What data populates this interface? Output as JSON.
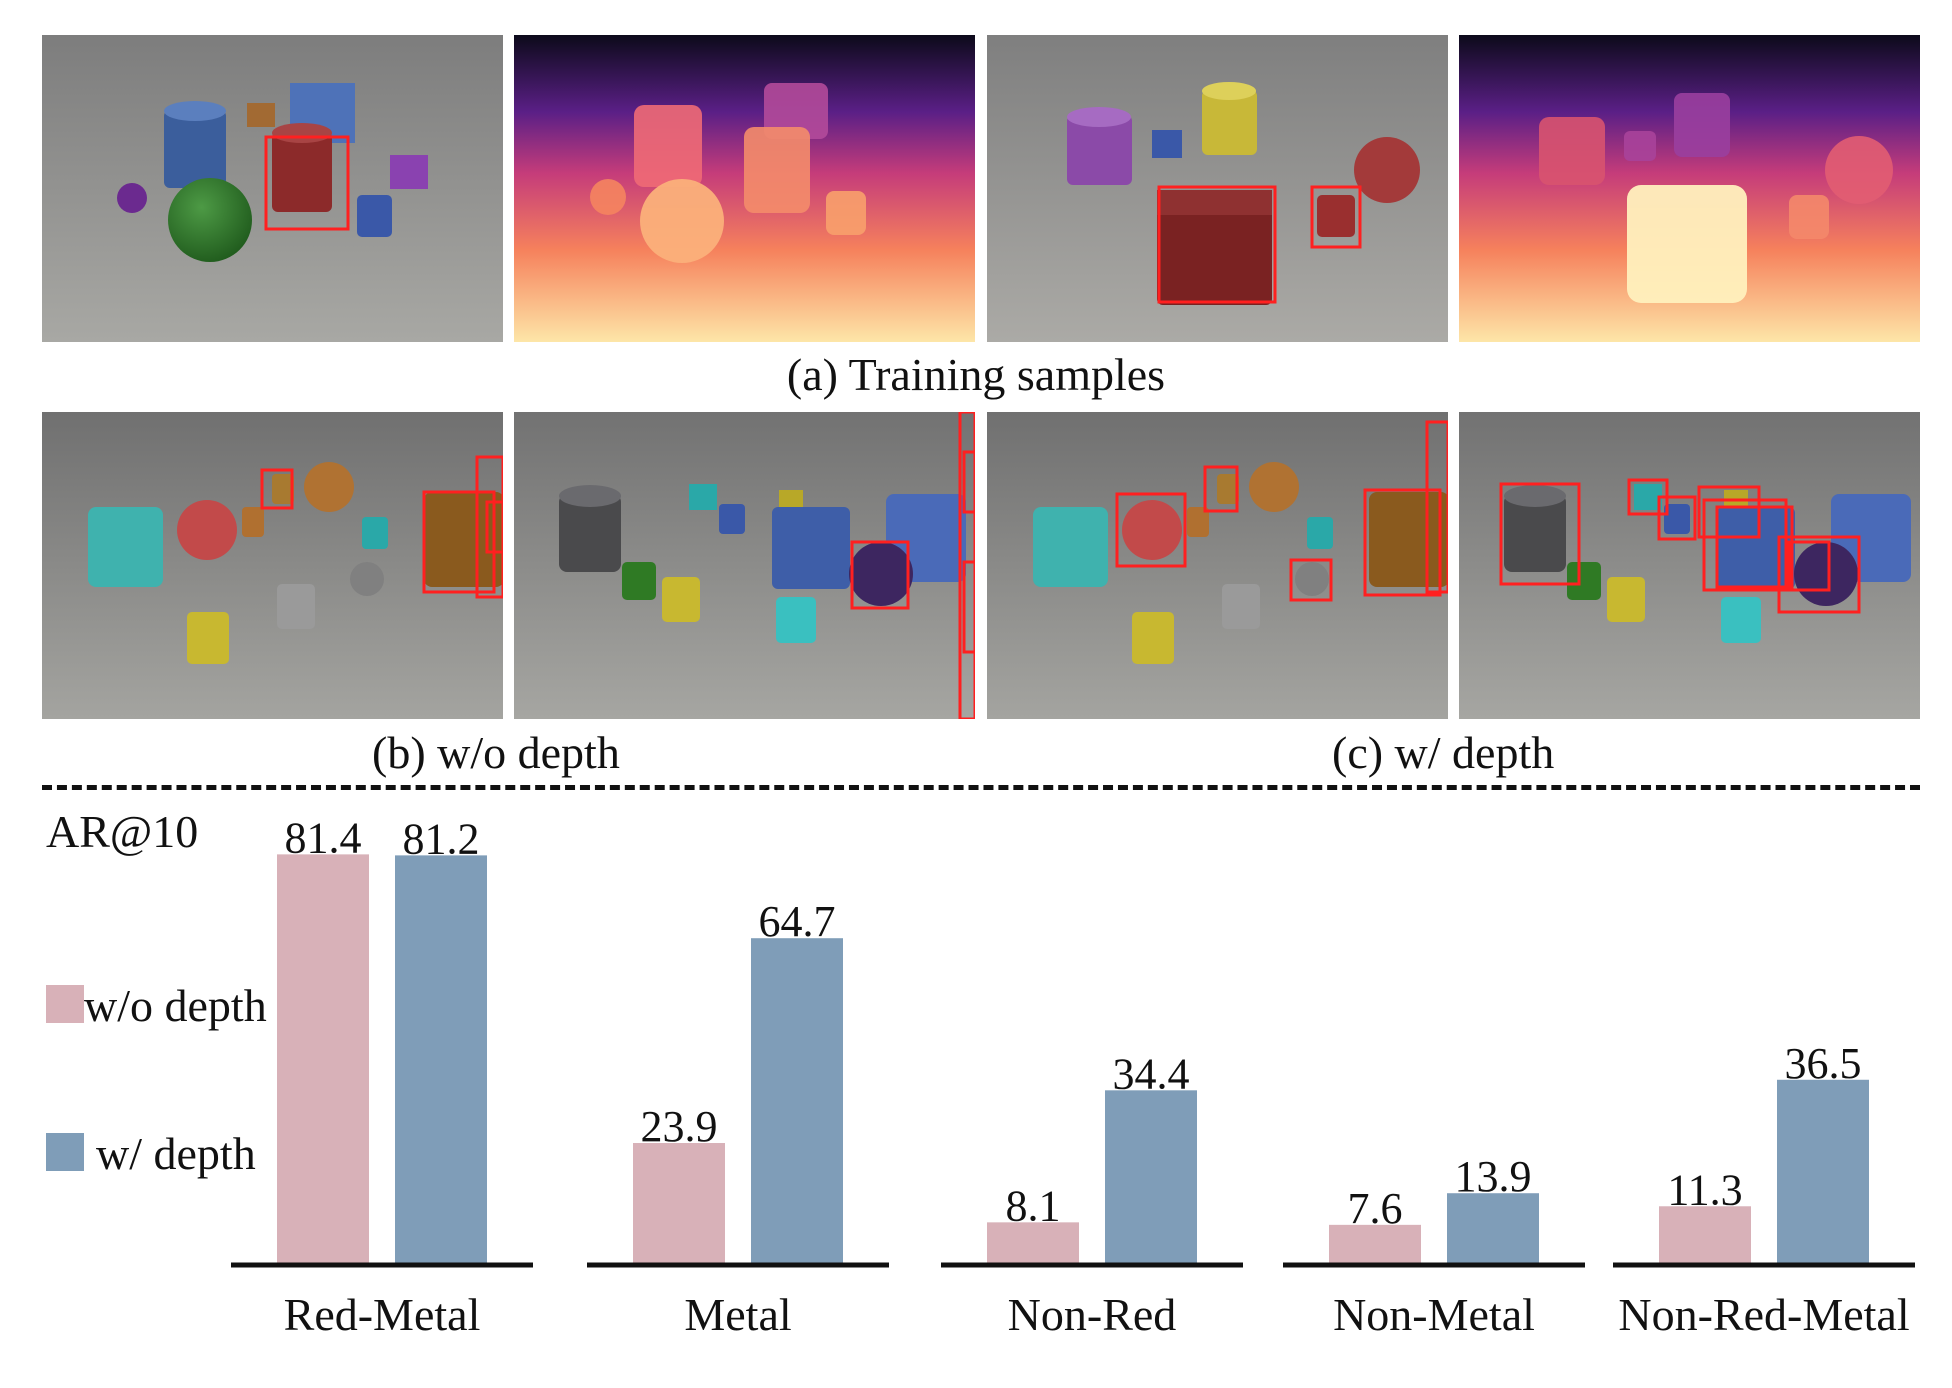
{
  "captions": {
    "training": "(a) Training samples",
    "without_depth": "(b) w/o depth",
    "with_depth": "(c) w/ depth"
  },
  "colors": {
    "without_depth": "#d8b1b8",
    "with_depth": "#7f9db8",
    "detection_box": "#ff2020",
    "axis": "#111111"
  },
  "chart_data": {
    "type": "bar",
    "ylabel": "AR@10",
    "categories": [
      "Red-Metal",
      "Metal",
      "Non-Red",
      "Non-Metal",
      "Non-Red-Metal"
    ],
    "series": [
      {
        "name": "w/o depth",
        "values": [
          81.4,
          23.9,
          8.1,
          7.6,
          11.3
        ]
      },
      {
        "name": "w/ depth",
        "values": [
          81.2,
          64.7,
          34.4,
          13.9,
          36.5
        ]
      }
    ],
    "legend": "left",
    "grid": false,
    "note": "bars with value above their plotted height appear capped at the panel top"
  }
}
